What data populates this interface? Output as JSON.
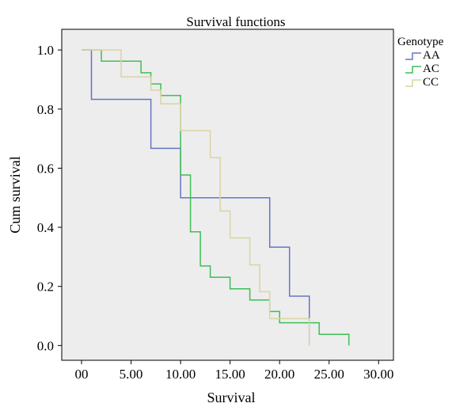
{
  "chart_data": {
    "type": "line",
    "step": true,
    "title": "Survival functions",
    "xlabel": "Survival",
    "ylabel": "Cum survival",
    "xlim": [
      -2,
      31.5
    ],
    "ylim": [
      -0.05,
      1.07
    ],
    "x_ticks": [
      0,
      5,
      10,
      15,
      20,
      25,
      30
    ],
    "x_tick_labels": [
      "00",
      "5.00",
      "10.00",
      "15.00",
      "20.00",
      "25.00",
      "30.00"
    ],
    "y_ticks": [
      0,
      0.2,
      0.4,
      0.6,
      0.8,
      1.0
    ],
    "y_tick_labels": [
      "0.0",
      "0.2",
      "0.4",
      "0.6",
      "0.8",
      "1.0"
    ],
    "grid": false,
    "background": "#ededed",
    "legend": {
      "title": "Genotype",
      "position": "right"
    },
    "series": [
      {
        "name": "AA",
        "color": "#6674c5",
        "points": [
          [
            0,
            1.0
          ],
          [
            1,
            1.0
          ],
          [
            1,
            0.833
          ],
          [
            7,
            0.833
          ],
          [
            7,
            0.667
          ],
          [
            10,
            0.667
          ],
          [
            10,
            0.5
          ],
          [
            19,
            0.5
          ],
          [
            19,
            0.333
          ],
          [
            21,
            0.333
          ],
          [
            21,
            0.167
          ],
          [
            23,
            0.167
          ],
          [
            23,
            0
          ]
        ]
      },
      {
        "name": "AC",
        "color": "#3dbf54",
        "points": [
          [
            0,
            1.0
          ],
          [
            2,
            1.0
          ],
          [
            2,
            0.962
          ],
          [
            6,
            0.962
          ],
          [
            6,
            0.923
          ],
          [
            7,
            0.923
          ],
          [
            7,
            0.885
          ],
          [
            8,
            0.885
          ],
          [
            8,
            0.846
          ],
          [
            10,
            0.846
          ],
          [
            10,
            0.577
          ],
          [
            11,
            0.577
          ],
          [
            11,
            0.385
          ],
          [
            12,
            0.385
          ],
          [
            12,
            0.269
          ],
          [
            13,
            0.269
          ],
          [
            13,
            0.231
          ],
          [
            15,
            0.231
          ],
          [
            15,
            0.192
          ],
          [
            17,
            0.192
          ],
          [
            17,
            0.154
          ],
          [
            19,
            0.154
          ],
          [
            19,
            0.115
          ],
          [
            20,
            0.115
          ],
          [
            20,
            0.077
          ],
          [
            24,
            0.077
          ],
          [
            24,
            0.038
          ],
          [
            27,
            0.038
          ],
          [
            27,
            0
          ]
        ]
      },
      {
        "name": "CC",
        "color": "#d9d4a3",
        "points": [
          [
            0,
            1.0
          ],
          [
            4,
            1.0
          ],
          [
            4,
            0.909
          ],
          [
            7,
            0.909
          ],
          [
            7,
            0.864
          ],
          [
            8,
            0.864
          ],
          [
            8,
            0.818
          ],
          [
            10,
            0.818
          ],
          [
            10,
            0.727
          ],
          [
            13,
            0.727
          ],
          [
            13,
            0.636
          ],
          [
            14,
            0.636
          ],
          [
            14,
            0.455
          ],
          [
            15,
            0.455
          ],
          [
            15,
            0.364
          ],
          [
            17,
            0.364
          ],
          [
            17,
            0.273
          ],
          [
            18,
            0.273
          ],
          [
            18,
            0.182
          ],
          [
            19,
            0.182
          ],
          [
            19,
            0.091
          ],
          [
            23,
            0.091
          ],
          [
            23,
            0
          ]
        ]
      }
    ]
  }
}
